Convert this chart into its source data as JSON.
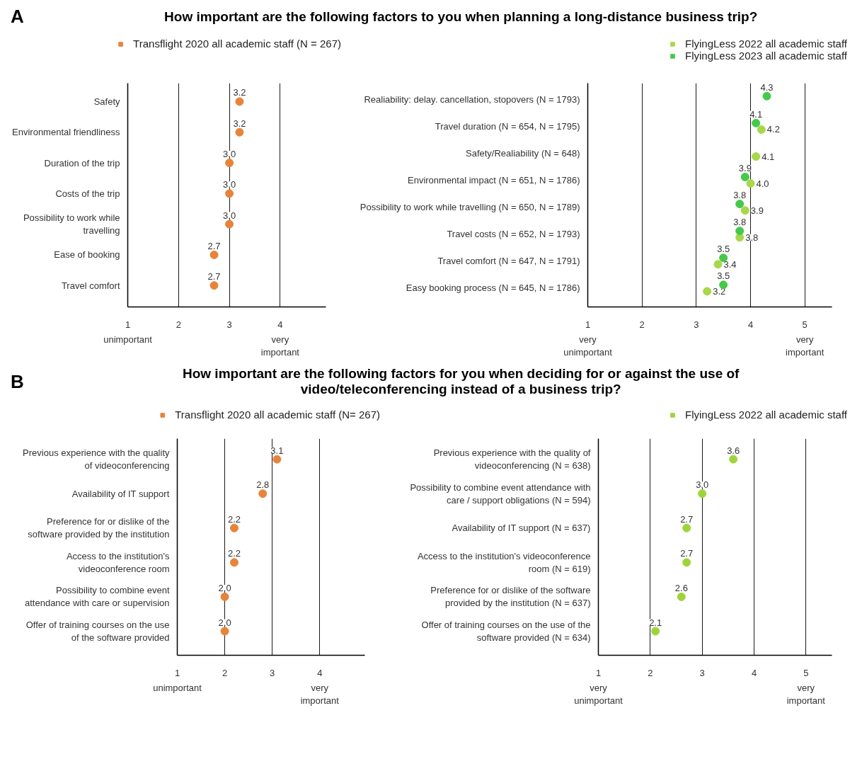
{
  "chart_data": [
    {
      "type": "scatter",
      "orientation": "horizontal",
      "title": "How important are the following factors to you when planning a long-distance business trip?",
      "annotations": [
        "A",
        "unimportant",
        "very important"
      ],
      "categories": [
        "Safety",
        "Environmental friendliness",
        "Duration of the trip",
        "Costs of the trip",
        "Possibility to work while travelling",
        "Ease of booking",
        "Travel comfort"
      ],
      "series": [
        {
          "name": "Transflight 2020 all academic staff (N = 267)",
          "color": "#e8833a",
          "values": [
            3.2,
            3.2,
            3.0,
            3.0,
            3.0,
            2.7,
            2.7
          ],
          "value_labels": [
            "3.2",
            "3.2",
            "3.0",
            "3.0",
            "3.0",
            "2.7",
            "2.7"
          ]
        }
      ],
      "xlim": [
        1,
        4.9
      ],
      "xticks": [
        1,
        2,
        3,
        4
      ],
      "grid": "x",
      "legend": "top",
      "marker": "circle"
    },
    {
      "type": "scatter",
      "orientation": "horizontal",
      "annotations": [
        "very unimportant",
        "very important"
      ],
      "categories": [
        "Realiability: delay. cancellation, stopovers (N = 1793)",
        "Travel duration (N = 654, N = 1795)",
        "Safety/Realiability (N = 648)",
        "Environmental impact (N = 651, N = 1786)",
        "Possibility to work while travelling (N = 650, N = 1789)",
        "Travel costs (N = 652, N = 1793)",
        "Travel comfort (N = 647, N = 1791)",
        "Easy booking process (N = 645, N = 1786)"
      ],
      "series": [
        {
          "name": "FlyingLess 2022 all academic staff",
          "color": "#a6d84a",
          "values": [
            null,
            4.2,
            4.1,
            4.0,
            3.9,
            3.8,
            3.4,
            3.2
          ],
          "value_labels": [
            null,
            "4.2",
            "4.1",
            "4.0",
            "3.9",
            "3.8",
            "3.4",
            "3.2"
          ]
        },
        {
          "name": "FlyingLess 2023 all academic staff",
          "color": "#45c94a",
          "values": [
            4.3,
            4.1,
            null,
            3.9,
            3.8,
            3.8,
            3.5,
            3.5
          ],
          "value_labels": [
            "4.3",
            "4.1",
            null,
            "3.9",
            "3.8",
            "3.8",
            "3.5",
            "3.5"
          ]
        }
      ],
      "xlim": [
        1,
        5.5
      ],
      "xticks": [
        1,
        2,
        3,
        4,
        5
      ],
      "grid": "x",
      "legend": "top",
      "marker": "circle"
    },
    {
      "type": "scatter",
      "orientation": "horizontal",
      "title": "How important are the following factors for you when deciding for or against the use of video/teleconferencing instead of a business trip?",
      "annotations": [
        "B",
        "unimportant",
        "very important"
      ],
      "categories": [
        "Previous experience with the quality of videoconferencing",
        "Availability of IT support",
        "Preference for or dislike of the software provided by the institution",
        "Access to the institution's videoconference room",
        "Possibility to combine event attendance with care or supervision",
        "Offer of training courses on the use of the software provided"
      ],
      "series": [
        {
          "name": "Transflight 2020 all academic staff (N= 267)",
          "color": "#e8833a",
          "values": [
            3.1,
            2.8,
            2.2,
            2.2,
            2.0,
            2.0
          ],
          "value_labels": [
            "3.1",
            "2.8",
            "2.2",
            "2.2",
            "2.0",
            "2.0"
          ]
        }
      ],
      "xlim": [
        1,
        4.95
      ],
      "xticks": [
        1,
        2,
        3,
        4
      ],
      "grid": "x",
      "legend": "top",
      "marker": "circle"
    },
    {
      "type": "scatter",
      "orientation": "horizontal",
      "annotations": [
        "very unimportant",
        "very important"
      ],
      "categories": [
        "Previous experience with the quality of videoconferencing (N = 638)",
        "Possibility to combine event attendance with care / support obligations (N = 594)",
        "Availability of IT support (N = 637)",
        "Access to the institution's videoconference room (N = 619)",
        "Preference for or dislike of the software provided by the institution (N = 637)",
        "Offer of training courses on the use of the software provided (N = 634)"
      ],
      "series": [
        {
          "name": "FlyingLess 2022 all academic staff",
          "color": "#9ed43a",
          "values": [
            3.6,
            3.0,
            2.7,
            2.7,
            2.6,
            2.1
          ],
          "value_labels": [
            "3.6",
            "3.0",
            "2.7",
            "2.7",
            "2.6",
            "2.1"
          ]
        }
      ],
      "xlim": [
        1,
        5.5
      ],
      "xticks": [
        1,
        2,
        3,
        4,
        5
      ],
      "grid": "x",
      "legend": "top",
      "marker": "circle"
    }
  ]
}
